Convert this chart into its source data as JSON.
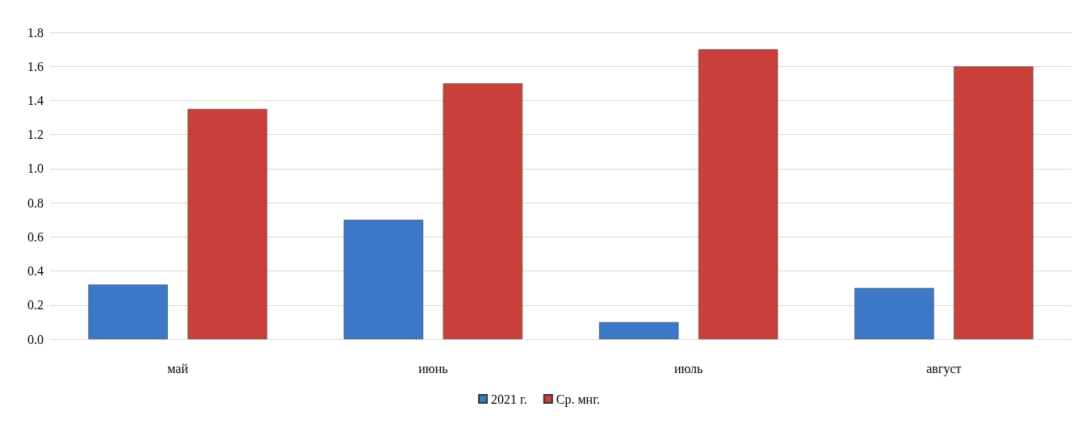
{
  "chart_data": {
    "type": "bar",
    "categories": [
      "май",
      "июнь",
      "июль",
      "август"
    ],
    "series": [
      {
        "name": "2021 г.",
        "color": "#3b78c8",
        "values": [
          0.32,
          0.7,
          0.1,
          0.3
        ]
      },
      {
        "name": "Ср. мнг.",
        "color": "#c9403b",
        "values": [
          1.35,
          1.5,
          1.7,
          1.6
        ]
      }
    ],
    "ylim": [
      0,
      1.8
    ],
    "yticks": [
      {
        "value": 0,
        "label": "0.0"
      },
      0.2,
      0.4,
      0.6,
      0.8,
      {
        "value": 1,
        "label": "1.0"
      },
      1.2,
      1.4,
      1.6,
      1.8
    ],
    "grid": "y",
    "legend": "bottom"
  }
}
